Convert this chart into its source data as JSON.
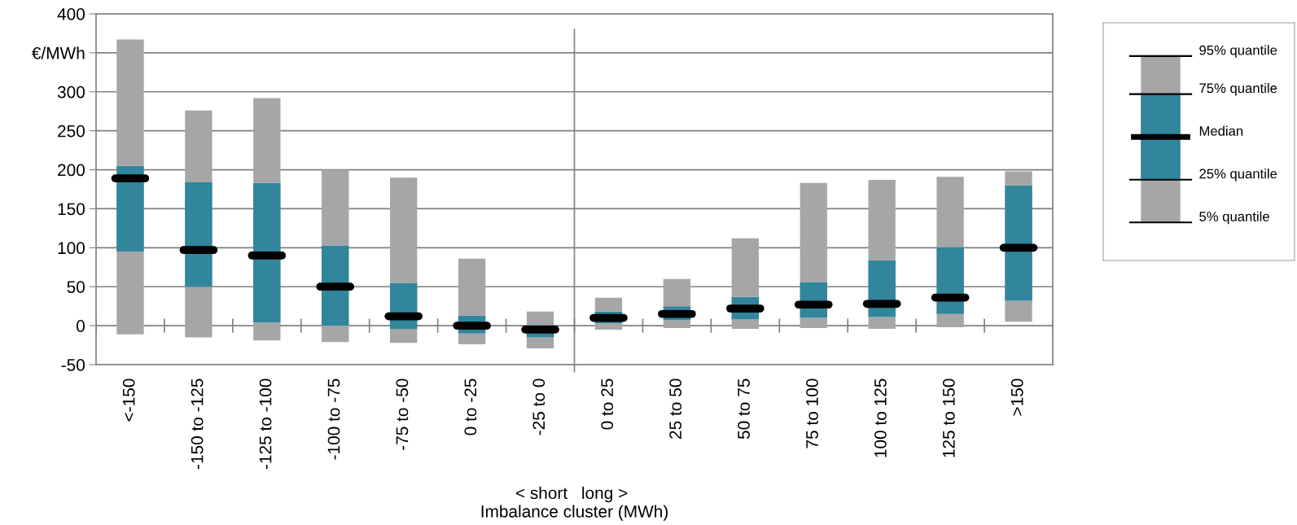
{
  "chart_data": {
    "type": "box",
    "xlabel": "Imbalance cluster (MWh)",
    "categories": [
      "<-150",
      "-150 to -125",
      "-125 to -100",
      "-100 to -75",
      "-75 to -50",
      "0 to -25",
      "-25 to 0",
      "0 to 25",
      "25 to 50",
      "50 to 75",
      "75 to 100",
      "100 to 125",
      "125 to 150",
      ">150"
    ],
    "series": [
      {
        "color": "#31859c",
        "boxes": [
          {
            "low": -11,
            "q1": 95,
            "median": 189,
            "q3": 205,
            "high": 367
          },
          {
            "low": -15,
            "q1": 50,
            "median": 97,
            "q3": 184,
            "high": 276
          },
          {
            "low": -19,
            "q1": 4,
            "median": 90,
            "q3": 183,
            "high": 292
          },
          {
            "low": -21,
            "q1": 0,
            "median": 50,
            "q3": 103,
            "high": 200
          },
          {
            "low": -22,
            "q1": -4,
            "median": 12,
            "q3": 55,
            "high": 190
          },
          {
            "low": -24,
            "q1": -10,
            "median": 0,
            "q3": 13,
            "high": 86
          },
          {
            "low": -29,
            "q1": -15,
            "median": -5,
            "q3": 1,
            "high": 18
          },
          {
            "low": -5,
            "q1": 3,
            "median": 10,
            "q3": 18,
            "high": 36
          },
          {
            "low": -3,
            "q1": 7,
            "median": 15,
            "q3": 25,
            "high": 60
          },
          {
            "low": -4,
            "q1": 8,
            "median": 22,
            "q3": 37,
            "high": 112
          },
          {
            "low": -3,
            "q1": 10,
            "median": 27,
            "q3": 56,
            "high": 183
          },
          {
            "low": -4,
            "q1": 11,
            "median": 28,
            "q3": 84,
            "high": 187
          },
          {
            "low": -2,
            "q1": 15,
            "median": 36,
            "q3": 101,
            "high": 191
          },
          {
            "low": 5,
            "q1": 32,
            "median": 100,
            "q3": 180,
            "high": 198
          }
        ]
      }
    ],
    "ylim": [
      -50,
      400
    ],
    "yticks": [
      -50,
      0,
      50,
      100,
      150,
      200,
      250,
      300,
      {
        "value": 350,
        "label": "€/MWh"
      },
      400
    ],
    "grid": "y",
    "annotations": [
      "< short",
      "long >",
      "95% quantile",
      "75% quantile",
      "Median",
      "25% quantile",
      "5% quantile"
    ]
  }
}
